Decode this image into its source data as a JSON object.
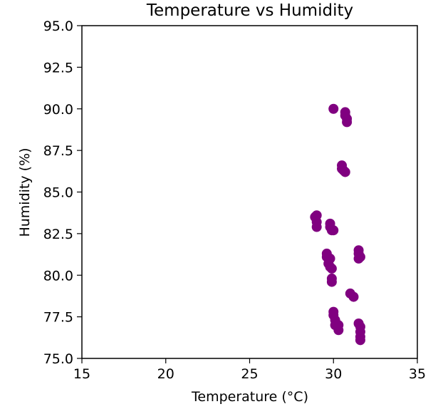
{
  "chart_data": {
    "type": "scatter",
    "title": "Temperature vs Humidity",
    "xlabel": "Temperature (°C)",
    "ylabel": "Humidity (%)",
    "xlim": [
      15,
      35
    ],
    "ylim": [
      75,
      95
    ],
    "xticks": [
      15,
      20,
      25,
      30,
      35
    ],
    "yticks": [
      75.0,
      77.5,
      80.0,
      82.5,
      85.0,
      87.5,
      90.0,
      92.5,
      95.0
    ],
    "xtick_labels": [
      "15",
      "20",
      "25",
      "30",
      "35"
    ],
    "ytick_labels": [
      "75.0",
      "77.5",
      "80.0",
      "82.5",
      "85.0",
      "87.5",
      "90.0",
      "92.5",
      "95.0"
    ],
    "grid": false,
    "color": "#800080",
    "points": [
      {
        "x": 30.0,
        "y": 90.0
      },
      {
        "x": 30.7,
        "y": 89.8
      },
      {
        "x": 30.7,
        "y": 89.6
      },
      {
        "x": 30.8,
        "y": 89.4
      },
      {
        "x": 30.8,
        "y": 89.2
      },
      {
        "x": 30.5,
        "y": 86.6
      },
      {
        "x": 30.5,
        "y": 86.4
      },
      {
        "x": 30.6,
        "y": 86.3
      },
      {
        "x": 30.7,
        "y": 86.2
      },
      {
        "x": 28.9,
        "y": 83.5
      },
      {
        "x": 29.0,
        "y": 83.6
      },
      {
        "x": 29.0,
        "y": 83.2
      },
      {
        "x": 29.0,
        "y": 82.9
      },
      {
        "x": 29.8,
        "y": 83.1
      },
      {
        "x": 29.8,
        "y": 82.9
      },
      {
        "x": 29.9,
        "y": 82.7
      },
      {
        "x": 30.0,
        "y": 82.7
      },
      {
        "x": 31.5,
        "y": 81.5
      },
      {
        "x": 31.5,
        "y": 81.3
      },
      {
        "x": 31.6,
        "y": 81.1
      },
      {
        "x": 31.5,
        "y": 81.0
      },
      {
        "x": 29.6,
        "y": 81.3
      },
      {
        "x": 29.6,
        "y": 81.1
      },
      {
        "x": 29.8,
        "y": 81.0
      },
      {
        "x": 29.7,
        "y": 80.7
      },
      {
        "x": 29.8,
        "y": 80.5
      },
      {
        "x": 29.9,
        "y": 80.4
      },
      {
        "x": 29.9,
        "y": 79.8
      },
      {
        "x": 29.9,
        "y": 79.6
      },
      {
        "x": 31.0,
        "y": 78.9
      },
      {
        "x": 31.2,
        "y": 78.7
      },
      {
        "x": 30.0,
        "y": 77.8
      },
      {
        "x": 30.0,
        "y": 77.6
      },
      {
        "x": 30.1,
        "y": 77.3
      },
      {
        "x": 30.1,
        "y": 77.0
      },
      {
        "x": 30.3,
        "y": 77.0
      },
      {
        "x": 30.3,
        "y": 76.7
      },
      {
        "x": 31.5,
        "y": 77.1
      },
      {
        "x": 31.6,
        "y": 76.9
      },
      {
        "x": 31.6,
        "y": 76.6
      },
      {
        "x": 31.6,
        "y": 76.3
      },
      {
        "x": 31.6,
        "y": 76.1
      }
    ]
  }
}
